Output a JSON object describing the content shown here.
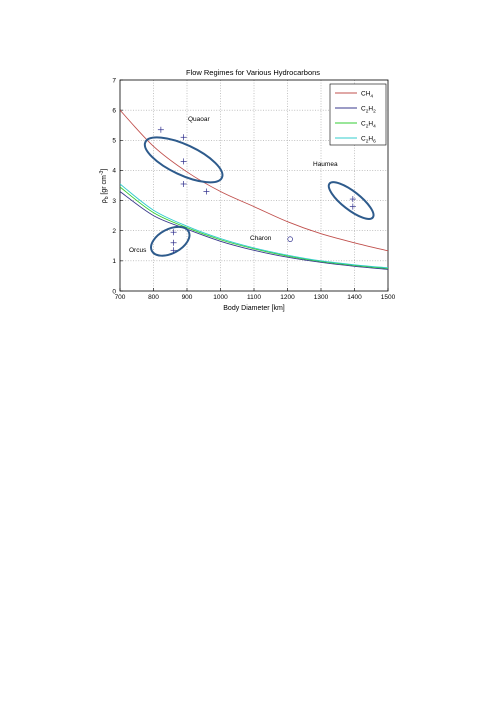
{
  "chart_data": {
    "type": "line",
    "title": "Flow Regimes for Various Hydrocarbons",
    "xlabel": "Body Diameter [km]",
    "ylabel": "ρb [gr cm-3]",
    "xlim": [
      700,
      1500
    ],
    "ylim": [
      0,
      7
    ],
    "xticks": [
      "700",
      "800",
      "900",
      "1000",
      "1100",
      "1200",
      "1300",
      "1400",
      "1500"
    ],
    "yticks": [
      "0",
      "1",
      "2",
      "3",
      "4",
      "5",
      "6",
      "7"
    ],
    "grid": true,
    "legend_position": "top-right",
    "series": [
      {
        "name": "CH4",
        "color": "#c0504d",
        "x": [
          700,
          800,
          900,
          1000,
          1100,
          1200,
          1300,
          1400,
          1500
        ],
        "y": [
          6.0,
          4.8,
          3.95,
          3.3,
          2.8,
          2.3,
          1.9,
          1.6,
          1.33
        ]
      },
      {
        "name": "C2H2",
        "color": "#3a3a8c",
        "x": [
          700,
          800,
          900,
          1000,
          1100,
          1200,
          1300,
          1400,
          1500
        ],
        "y": [
          3.3,
          2.5,
          2.05,
          1.65,
          1.35,
          1.12,
          0.95,
          0.82,
          0.72
        ]
      },
      {
        "name": "C2H4",
        "color": "#33cc33",
        "x": [
          700,
          800,
          900,
          1000,
          1100,
          1200,
          1300,
          1400,
          1500
        ],
        "y": [
          3.45,
          2.6,
          2.1,
          1.7,
          1.4,
          1.16,
          0.98,
          0.85,
          0.75
        ]
      },
      {
        "name": "C2H6",
        "color": "#33cccc",
        "x": [
          700,
          800,
          900,
          1000,
          1100,
          1200,
          1300,
          1400,
          1500
        ],
        "y": [
          3.55,
          2.68,
          2.15,
          1.74,
          1.43,
          1.19,
          1.0,
          0.87,
          0.77
        ]
      }
    ],
    "bodies": [
      {
        "name": "Quaoar",
        "ellipse": {
          "cx": 890,
          "cy": 4.35,
          "rx": 45,
          "ry": 1.4,
          "rot": -65
        },
        "markers": [
          {
            "x": 822,
            "y": 5.35
          },
          {
            "x": 890,
            "y": 5.1
          },
          {
            "x": 890,
            "y": 4.3
          },
          {
            "x": 890,
            "y": 3.55
          },
          {
            "x": 958,
            "y": 3.3
          }
        ]
      },
      {
        "name": "Orcus",
        "ellipse": {
          "cx": 850,
          "cy": 1.65,
          "rx": 62,
          "ry": 0.4,
          "rot": -28
        },
        "markers": [
          {
            "x": 860,
            "y": 1.95
          },
          {
            "x": 860,
            "y": 1.6
          },
          {
            "x": 860,
            "y": 1.35
          }
        ]
      },
      {
        "name": "Haumea",
        "ellipse": {
          "cx": 1390,
          "cy": 3.0,
          "rx": 82,
          "ry": 0.1,
          "rot": 38
        },
        "markers": [
          {
            "x": 1395,
            "y": 3.05
          },
          {
            "x": 1395,
            "y": 2.8
          }
        ]
      },
      {
        "name": "Charon",
        "point": {
          "x": 1208,
          "y": 1.72
        }
      }
    ]
  }
}
